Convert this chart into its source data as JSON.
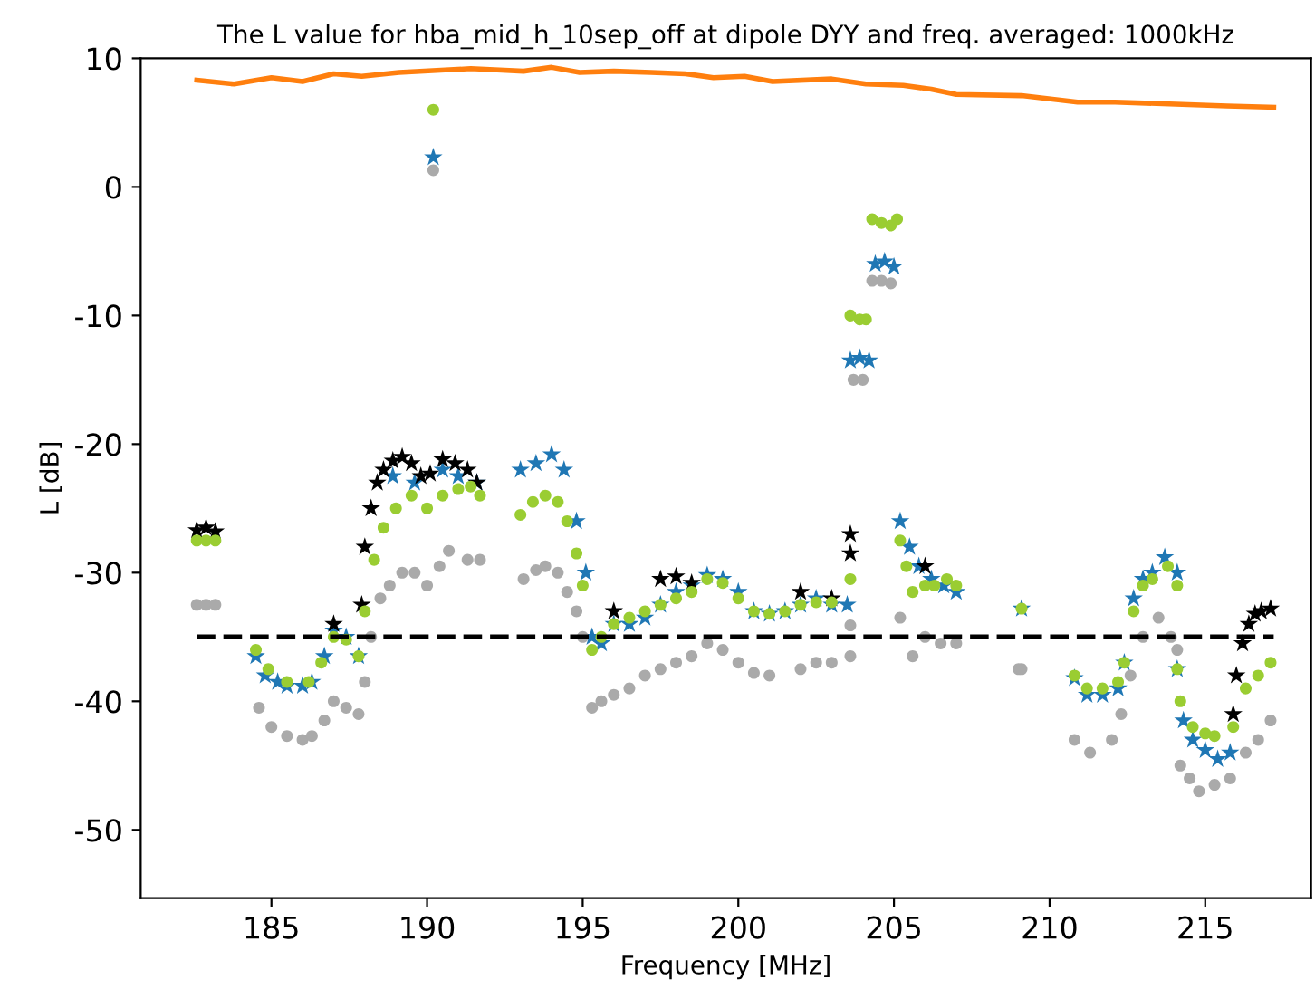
{
  "chart_data": {
    "type": "scatter",
    "title": "The L value for hba_mid_h_10sep_off at dipole DYY and freq. averaged: 1000kHz",
    "xlabel": "Frequency [MHz]",
    "ylabel": "L [dB]",
    "xlim": [
      180.8,
      218.4
    ],
    "ylim": [
      -55.3,
      10
    ],
    "xticks": [
      185,
      190,
      195,
      200,
      205,
      210,
      215
    ],
    "yticks": [
      -50,
      -40,
      -30,
      -20,
      -10,
      0,
      10
    ],
    "grid": false,
    "ref_lines": [
      {
        "axis": "y",
        "value": -35,
        "color": "#000000",
        "line_style": "dashed"
      }
    ],
    "series": [
      {
        "type": "line",
        "color": "#ff7f0e",
        "marker": "none",
        "x": [
          182.6,
          183.8,
          185,
          186,
          187,
          187.9,
          189.1,
          191.4,
          193.1,
          194,
          194.9,
          196,
          197.2,
          198.3,
          199.2,
          200.2,
          201.1,
          203,
          204.1,
          205.3,
          206.2,
          207,
          209.1,
          210.9,
          212.1,
          215.7,
          217.2
        ],
        "values": [
          8.3,
          8.0,
          8.5,
          8.2,
          8.8,
          8.6,
          8.9,
          9.2,
          9.0,
          9.3,
          8.9,
          9.0,
          8.9,
          8.8,
          8.5,
          8.6,
          8.2,
          8.4,
          8.0,
          7.9,
          7.6,
          7.2,
          7.1,
          6.6,
          6.6,
          6.3,
          6.2
        ]
      },
      {
        "color": "#1f77b4",
        "marker": "star",
        "x": [
          184.5,
          184.8,
          185.2,
          185.5,
          186,
          186.3,
          186.7,
          187,
          187.4,
          187.8,
          188.9,
          189.6,
          190.2,
          190.5,
          191,
          191.6,
          193,
          193.5,
          194,
          194.4,
          194.8,
          195.1,
          195.3,
          195.6,
          196,
          196.5,
          197,
          197.5,
          198,
          198.5,
          199,
          199.5,
          200,
          200.5,
          201,
          201.5,
          202,
          202.5,
          203,
          203.5,
          203.6,
          203.9,
          204.2,
          204.4,
          204.7,
          205,
          205.2,
          205.5,
          205.8,
          206.2,
          206.6,
          207,
          209.1,
          210.8,
          211.2,
          211.7,
          212.2,
          212.4,
          212.7,
          213,
          213.3,
          213.7,
          214.1,
          214.1,
          214.3,
          214.6,
          215,
          215.4,
          215.8
        ],
        "values": [
          -36.5,
          -38,
          -38.5,
          -38.8,
          -38.8,
          -38.5,
          -36.5,
          -34.5,
          -35,
          -36.5,
          -22.5,
          -23,
          2.3,
          -22,
          -22.5,
          -23,
          -22,
          -21.5,
          -20.8,
          -22,
          -26,
          -30,
          -35,
          -35.5,
          -34,
          -34,
          -33.5,
          -32.5,
          -31.5,
          -31,
          -30.2,
          -30.5,
          -31.5,
          -33,
          -33.2,
          -33,
          -32.5,
          -32,
          -32.5,
          -32.5,
          -13.5,
          -13.3,
          -13.5,
          -6,
          -5.8,
          -6.2,
          -26,
          -28,
          -29.5,
          -30.5,
          -31,
          -31.5,
          -32.8,
          -38.2,
          -39.5,
          -39.5,
          -39,
          -37,
          -32,
          -30.5,
          -30,
          -28.8,
          -30,
          -37.5,
          -41.5,
          -43,
          -43.8,
          -44.5,
          -44
        ]
      },
      {
        "color": "#000000",
        "marker": "star",
        "x": [
          182.6,
          182.9,
          183.2,
          187,
          187.9,
          188,
          188.2,
          188.4,
          188.6,
          188.9,
          189.2,
          189.5,
          189.8,
          190.1,
          190.5,
          190.9,
          191.3,
          191.6,
          196,
          197.5,
          198,
          198.5,
          202,
          203,
          203.6,
          203.6,
          206,
          215.9,
          216,
          216.2,
          216.4,
          216.6,
          216.8,
          217.1
        ],
        "values": [
          -26.7,
          -26.5,
          -26.8,
          -34,
          -32.5,
          -28,
          -25,
          -23,
          -22,
          -21.3,
          -21,
          -21.5,
          -22.5,
          -22.3,
          -21.2,
          -21.5,
          -22,
          -23,
          -33,
          -30.5,
          -30.3,
          -30.8,
          -31.5,
          -32,
          -27,
          -28.5,
          -29.5,
          -41,
          -38,
          -35.5,
          -34,
          -33.2,
          -33,
          -32.8
        ]
      },
      {
        "color": "#9acd32",
        "marker": "circle",
        "x": [
          182.6,
          182.9,
          183.2,
          184.5,
          184.9,
          185.5,
          186.2,
          186.6,
          187,
          187.4,
          187.8,
          188,
          188.3,
          188.6,
          189,
          189.5,
          190,
          190.2,
          190.5,
          191,
          191.4,
          191.7,
          193,
          193.4,
          193.8,
          194.2,
          194.5,
          194.8,
          195,
          195.3,
          195.6,
          196,
          196.5,
          197,
          197.5,
          198,
          198.5,
          199,
          199.5,
          200,
          200.5,
          201,
          201.5,
          202,
          202.5,
          203,
          203.6,
          203.6,
          203.9,
          204.1,
          204.3,
          204.6,
          204.9,
          205.1,
          205.2,
          205.4,
          205.6,
          206,
          206.3,
          206.7,
          207,
          209.1,
          210.8,
          211.2,
          211.7,
          212.2,
          212.4,
          212.7,
          213,
          213.3,
          213.8,
          214.1,
          214.1,
          214.2,
          214.6,
          215,
          215.3,
          215.9,
          216.3,
          216.7,
          217.1
        ],
        "values": [
          -27.5,
          -27.5,
          -27.5,
          -36,
          -37.5,
          -38.5,
          -38.5,
          -37,
          -35,
          -35.2,
          -36.5,
          -33,
          -29,
          -26.5,
          -25,
          -24,
          -25,
          6,
          -24,
          -23.5,
          -23.3,
          -24,
          -25.5,
          -24.5,
          -24,
          -24.5,
          -26,
          -28.5,
          -31,
          -36,
          -35,
          -34,
          -33.5,
          -33,
          -32.5,
          -32,
          -31.5,
          -30.5,
          -30.8,
          -32,
          -33,
          -33.2,
          -33,
          -32.5,
          -32.3,
          -32.3,
          -30.5,
          -10,
          -10.3,
          -10.3,
          -2.5,
          -2.8,
          -3,
          -2.5,
          -27.5,
          -29.5,
          -31.5,
          -31,
          -31,
          -30.5,
          -31,
          -32.8,
          -38,
          -39,
          -39,
          -38.5,
          -37,
          -33,
          -31,
          -30.5,
          -29.5,
          -31,
          -37.5,
          -40,
          -42,
          -42.5,
          -42.7,
          -42,
          -39,
          -38,
          -37
        ]
      },
      {
        "color": "#aaaaaa",
        "marker": "circle",
        "x": [
          182.6,
          182.9,
          183.2,
          184.6,
          185,
          185.5,
          186,
          186.3,
          186.7,
          187,
          187.4,
          187.8,
          188,
          188.2,
          188.5,
          188.8,
          189.2,
          189.6,
          190,
          190.2,
          190.4,
          190.7,
          191.3,
          191.7,
          193.1,
          193.5,
          193.8,
          194.2,
          194.5,
          194.8,
          195,
          195.3,
          195.6,
          196,
          196.5,
          197,
          197.5,
          198,
          198.5,
          199,
          199.5,
          200,
          200.5,
          201,
          202,
          202.5,
          203,
          203.6,
          203.6,
          203.7,
          204,
          204.3,
          204.6,
          204.9,
          205.2,
          205.6,
          206,
          206.5,
          207,
          209,
          209.1,
          210.8,
          211.3,
          212,
          212.3,
          212.6,
          213,
          213.5,
          213.9,
          214.1,
          214.2,
          214.5,
          214.8,
          215.3,
          215.8,
          216.3,
          216.7,
          217.1
        ],
        "values": [
          -32.5,
          -32.5,
          -32.5,
          -40.5,
          -42,
          -42.7,
          -43,
          -42.7,
          -41.5,
          -40,
          -40.5,
          -41,
          -38.5,
          -35,
          -32,
          -31,
          -30,
          -30,
          -31,
          1.3,
          -29.5,
          -28.3,
          -29,
          -29,
          -30.5,
          -29.8,
          -29.5,
          -30,
          -31.5,
          -33,
          -35,
          -40.5,
          -40,
          -39.5,
          -39,
          -38,
          -37.5,
          -37,
          -36.5,
          -35.5,
          -36,
          -37,
          -37.8,
          -38,
          -37.5,
          -37,
          -37,
          -34.1,
          -36.5,
          -15,
          -15,
          -7.3,
          -7.3,
          -7.5,
          -33.5,
          -36.5,
          -35,
          -35.5,
          -35.5,
          -37.5,
          -37.5,
          -43,
          -44,
          -43,
          -41,
          -38,
          -35,
          -33.5,
          -35,
          -36,
          -45,
          -46,
          -47,
          -46.5,
          -46,
          -44,
          -43,
          -41.5
        ]
      }
    ]
  }
}
